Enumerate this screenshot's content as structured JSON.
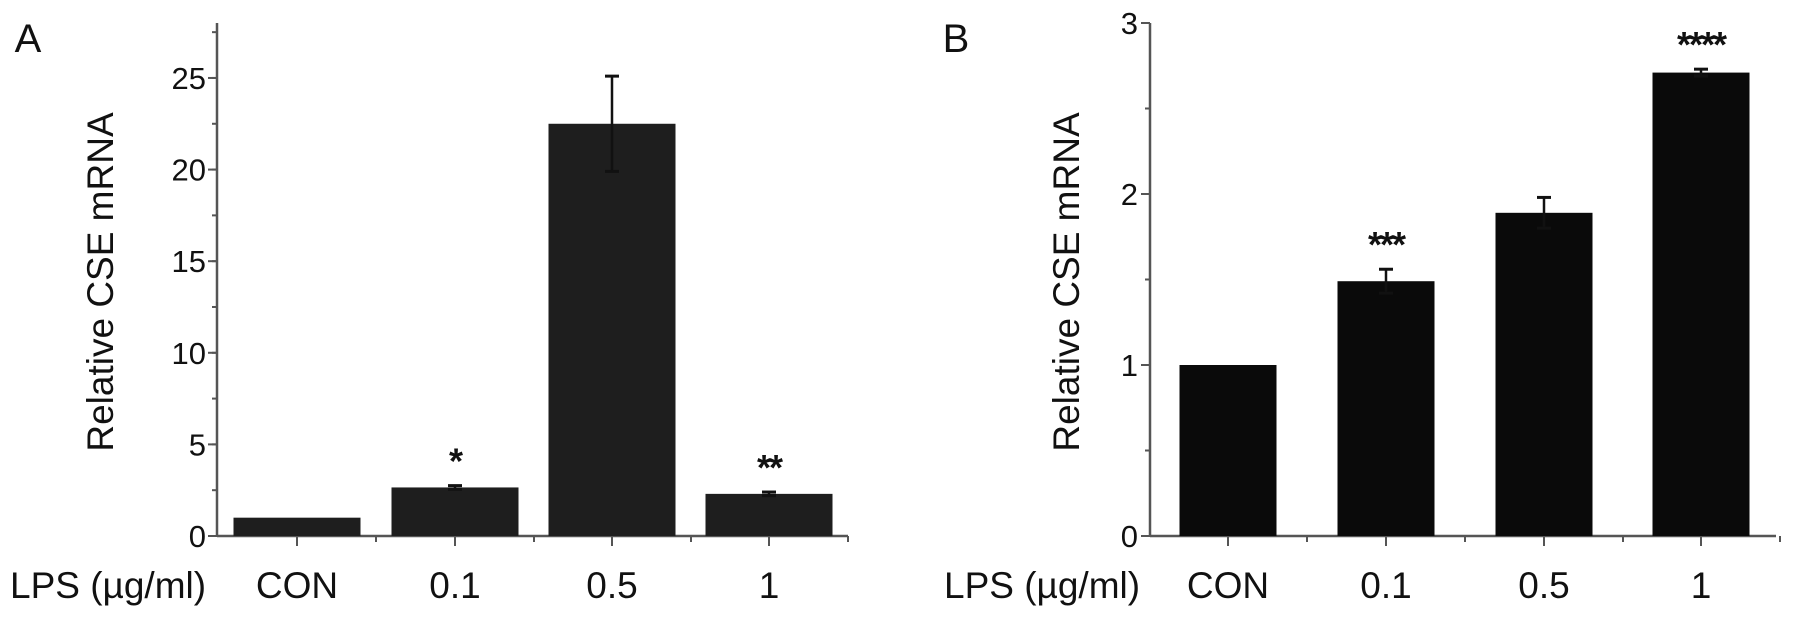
{
  "chart_data": [
    {
      "panel": "A",
      "type": "bar",
      "xlabel_prefix": "LPS (µg/ml)",
      "categories": [
        "CON",
        "0.1",
        "0.5",
        "1"
      ],
      "values": [
        1.0,
        2.65,
        22.5,
        2.3
      ],
      "errors": [
        0.0,
        0.1,
        2.6,
        0.1
      ],
      "significance": [
        "",
        "*",
        "",
        "**"
      ],
      "ylabel": "Relative CSE mRNA",
      "ylim": [
        0,
        28
      ],
      "yticks": [
        0,
        5,
        10,
        15,
        20,
        25
      ],
      "bar_color": "#1e1e1e",
      "grid": false
    },
    {
      "panel": "B",
      "type": "bar",
      "xlabel_prefix": "LPS (µg/ml)",
      "categories": [
        "CON",
        "0.1",
        "0.5",
        "1"
      ],
      "values": [
        1.0,
        1.49,
        1.89,
        2.71
      ],
      "errors": [
        0.0,
        0.07,
        0.09,
        0.02
      ],
      "significance": [
        "",
        "***",
        "",
        "****"
      ],
      "ylabel": "Relative CSE mRNA",
      "ylim": [
        0,
        3
      ],
      "yticks": [
        0,
        1,
        2,
        3
      ],
      "bar_color": "#0a0a0a",
      "grid": false
    }
  ]
}
